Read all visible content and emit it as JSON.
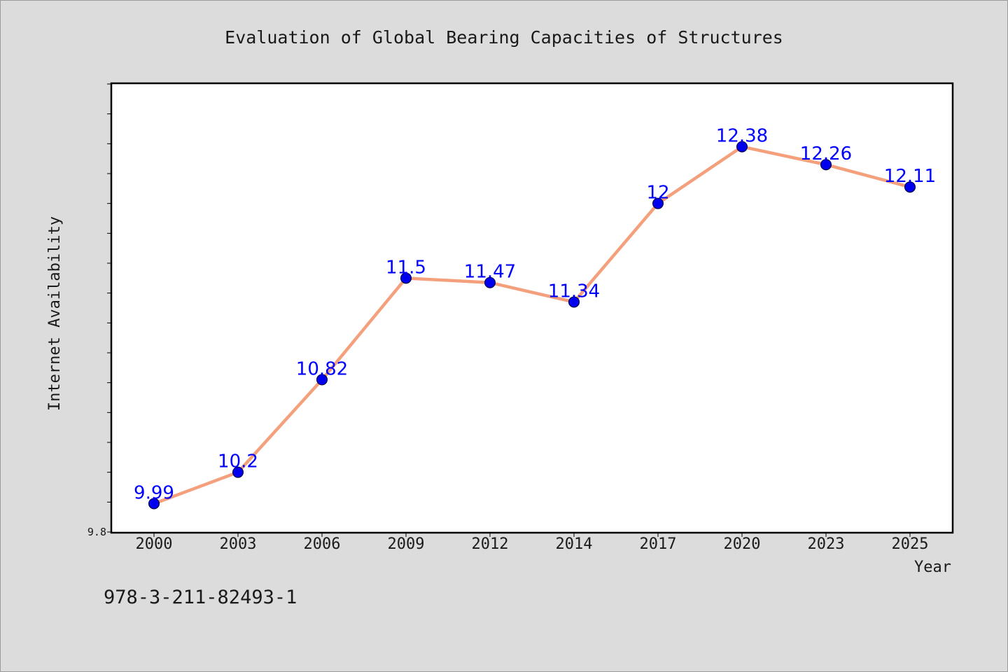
{
  "chart_data": {
    "type": "line",
    "title": "Evaluation of Global Bearing Capacities of Structures",
    "xlabel": "Year",
    "ylabel": "Internet Availability",
    "categories": [
      "2000",
      "2003",
      "2006",
      "2009",
      "2012",
      "2014",
      "2017",
      "2020",
      "2023",
      "2025"
    ],
    "series": [
      {
        "values": [
          9.99,
          10.2,
          10.82,
          11.5,
          11.47,
          11.34,
          12.0,
          12.38,
          12.26,
          12.11
        ],
        "data_labels": [
          "9.99",
          "10.2",
          "10.82",
          "11.5",
          "11.47",
          "11.34",
          "12",
          "12.38",
          "12.26",
          "12.11"
        ],
        "line_color": "#f4a07c",
        "marker_color": "#0000ee"
      }
    ],
    "ylim": [
      9.8,
      12.8
    ],
    "ytick_labels": [
      {
        "value": 9.8,
        "label": "9.8"
      }
    ],
    "grid": false,
    "legend": "none",
    "colors": {
      "background": "#dcdcdc",
      "plot_background": "#ffffff",
      "label_color": "#0000ff"
    }
  },
  "footer": {
    "isbn": "978-3-211-82493-1"
  }
}
